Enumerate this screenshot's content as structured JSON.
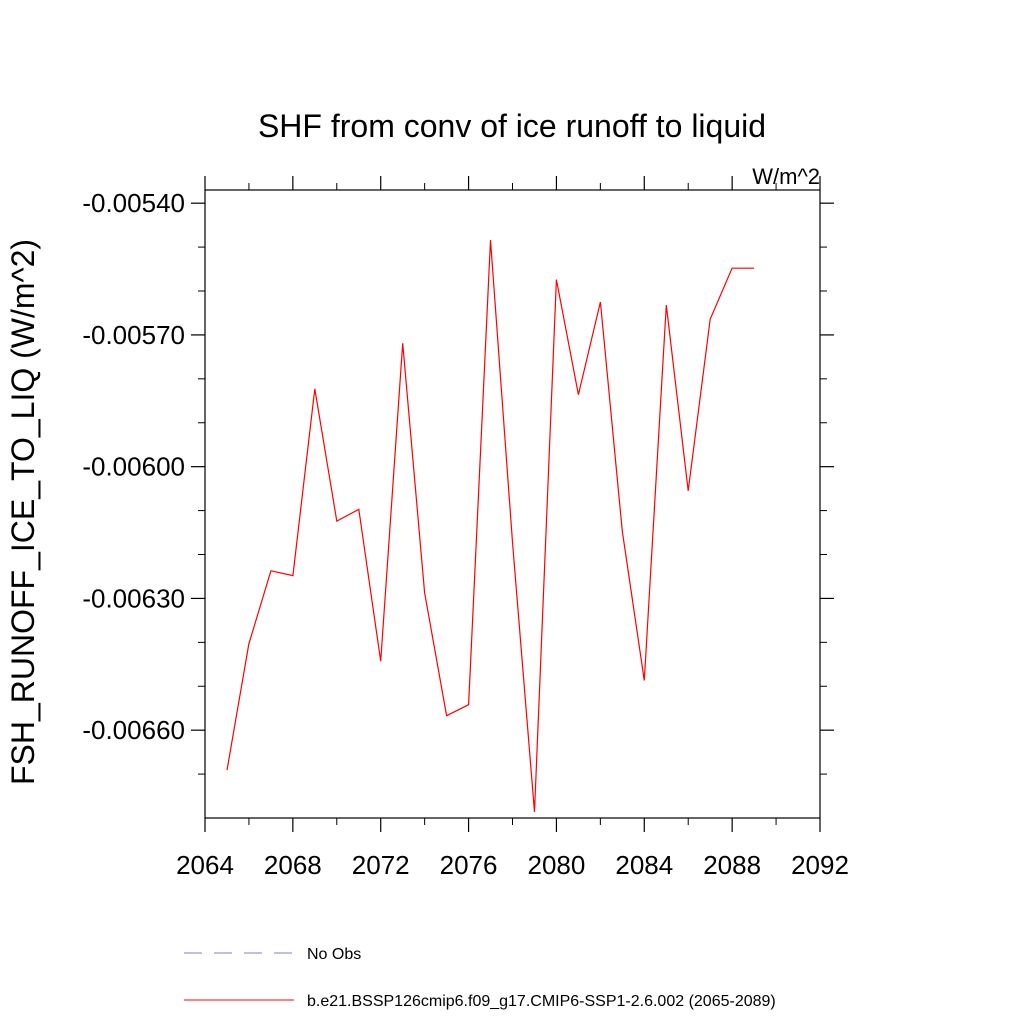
{
  "chart_data": {
    "type": "line",
    "title": "SHF from conv of ice runoff to liquid",
    "units": "W/m^2",
    "xlabel": "",
    "ylabel": "FSH_RUNOFF_ICE_TO_LIQ  (W/m^2)",
    "xlim": [
      2064,
      2092
    ],
    "ylim": [
      -0.0068,
      -0.00537
    ],
    "x_ticks": [
      2064,
      2068,
      2072,
      2076,
      2080,
      2084,
      2088,
      2092
    ],
    "x_tick_labels": [
      "2064",
      "2068",
      "2072",
      "2076",
      "2080",
      "2084",
      "2088",
      "2092"
    ],
    "y_ticks": [
      -0.0054,
      -0.0057,
      -0.006,
      -0.0063,
      -0.0066
    ],
    "y_tick_labels": [
      "-0.00540",
      "-0.00570",
      "-0.00600",
      "-0.00630",
      "-0.00660"
    ],
    "y_minor_ticks": [
      -0.0055,
      -0.0056,
      -0.0058,
      -0.0059,
      -0.0061,
      -0.0062,
      -0.0064,
      -0.0065,
      -0.0067
    ],
    "series": [
      {
        "name": "b.e21.BSSP126cmip6.f09_g17.CMIP6-SSP1-2.6.002 (2065-2089)",
        "color": "#ff0000",
        "style": "solid",
        "x": [
          2065,
          2066,
          2067,
          2068,
          2069,
          2070,
          2071,
          2072,
          2073,
          2074,
          2075,
          2076,
          2077,
          2078,
          2079,
          2080,
          2081,
          2082,
          2083,
          2084,
          2085,
          2086,
          2087,
          2088,
          2089
        ],
        "y": [
          -0.006691,
          -0.006403,
          -0.006237,
          -0.006248,
          -0.005823,
          -0.006124,
          -0.006097,
          -0.006443,
          -0.005719,
          -0.006287,
          -0.006567,
          -0.006542,
          -0.005484,
          -0.006172,
          -0.006786,
          -0.005574,
          -0.005836,
          -0.005625,
          -0.006147,
          -0.006487,
          -0.005632,
          -0.006055,
          -0.005664,
          -0.005548,
          -0.005548
        ]
      }
    ],
    "legend": [
      {
        "label": "No Obs",
        "color": "#8a7fc4",
        "style": "dashed"
      },
      {
        "label": "b.e21.BSSP126cmip6.f09_g17.CMIP6-SSP1-2.6.002 (2065-2089)",
        "color": "#ff0000",
        "style": "solid"
      }
    ],
    "legend_position": "bottom-left",
    "grid": false
  }
}
